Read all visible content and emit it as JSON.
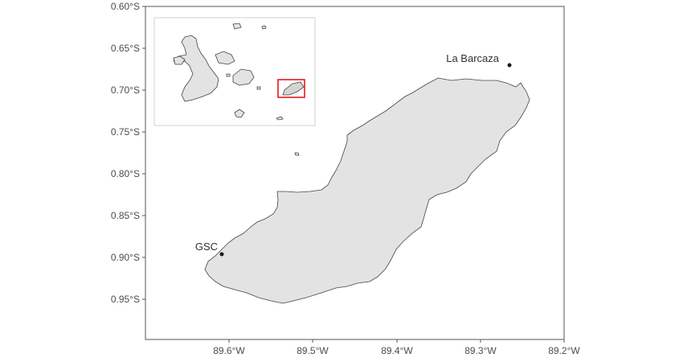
{
  "map": {
    "y_labels": [
      "0.60°S",
      "0.65°S",
      "0.70°S",
      "0.75°S",
      "0.80°S",
      "0.85°S",
      "0.90°S",
      "0.95°S"
    ],
    "x_labels": [
      "89.6°W",
      "89.5°W",
      "89.4°W",
      "89.3°W",
      "89.2°W"
    ],
    "lat_range": [
      -0.6,
      -1.0
    ],
    "lon_range": [
      -89.7,
      -89.2
    ],
    "sites": [
      {
        "name": "La Barcaza",
        "lon": -89.262,
        "lat": -0.67
      },
      {
        "name": "GSC",
        "lon": -89.611,
        "lat": -0.896
      }
    ],
    "colors": {
      "land": "#e3e3e3",
      "coast": "#444444",
      "panel_border": "#555555",
      "inset_highlight": "#e8191c",
      "point": "#1a1a1a"
    }
  }
}
